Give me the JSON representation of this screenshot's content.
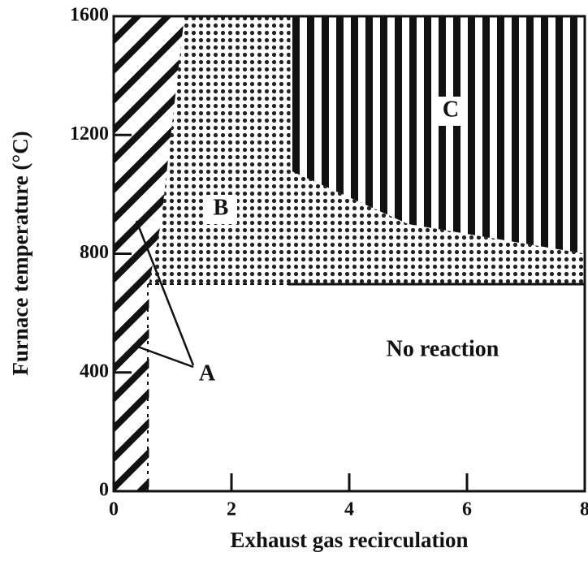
{
  "chart_data": {
    "type": "region",
    "xlabel": "Exhaust gas recirculation",
    "ylabel": "Furnace temperature (°C)",
    "xlim": [
      0,
      8
    ],
    "ylim": [
      0,
      1600
    ],
    "xticks": [
      0,
      2,
      4,
      6,
      8
    ],
    "yticks": [
      0,
      400,
      800,
      1200,
      1600
    ],
    "regions": [
      {
        "name": "A",
        "pattern": "hatch",
        "x": [
          0,
          0.6,
          0.6,
          0.8,
          1.2,
          0
        ],
        "y": [
          0,
          0,
          700,
          900,
          1600,
          1600
        ]
      },
      {
        "name": "B",
        "pattern": "dots",
        "x": [
          0.6,
          8,
          8,
          5,
          3,
          3,
          1.2,
          0.8
        ],
        "y": [
          700,
          700,
          800,
          900,
          1080,
          1600,
          1600,
          900
        ]
      },
      {
        "name": "C",
        "pattern": "stripes",
        "x": [
          3,
          8,
          8,
          5,
          3
        ],
        "y": [
          1600,
          1600,
          800,
          900,
          1080
        ]
      },
      {
        "name": "No reaction",
        "pattern": "none",
        "x": [
          0.6,
          8,
          8,
          0.6
        ],
        "y": [
          0,
          0,
          700,
          700
        ]
      }
    ]
  }
}
